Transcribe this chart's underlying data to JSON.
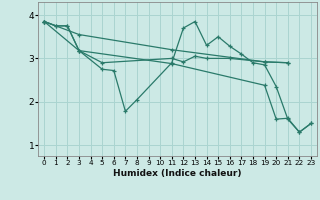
{
  "xlabel": "Humidex (Indice chaleur)",
  "background_color": "#cce9e5",
  "grid_color": "#aad4d0",
  "line_color": "#2a7a6a",
  "xlim": [
    -0.5,
    23.5
  ],
  "ylim": [
    0.75,
    4.3
  ],
  "yticks": [
    1,
    2,
    3,
    4
  ],
  "xticks": [
    0,
    1,
    2,
    3,
    4,
    5,
    6,
    7,
    8,
    9,
    10,
    11,
    12,
    13,
    14,
    15,
    16,
    17,
    18,
    19,
    20,
    21,
    22,
    23
  ],
  "series": [
    {
      "x": [
        0,
        1,
        2,
        3,
        5,
        6,
        7,
        8,
        11,
        12,
        13,
        14,
        15,
        16,
        17,
        18,
        19,
        20,
        21,
        22,
        23
      ],
      "y": [
        3.85,
        3.75,
        3.75,
        3.18,
        2.75,
        2.72,
        1.78,
        2.05,
        2.9,
        3.7,
        3.85,
        3.3,
        3.5,
        3.28,
        3.1,
        2.9,
        2.85,
        2.35,
        1.6,
        1.3,
        1.5
      ]
    },
    {
      "x": [
        0,
        1,
        2,
        3,
        5,
        11,
        12,
        13,
        14,
        16,
        19,
        21
      ],
      "y": [
        3.85,
        3.75,
        3.75,
        3.18,
        2.9,
        3.0,
        2.92,
        3.05,
        3.0,
        3.0,
        2.92,
        2.9
      ]
    },
    {
      "x": [
        0,
        3,
        11,
        19,
        21
      ],
      "y": [
        3.85,
        3.55,
        3.2,
        2.92,
        2.9
      ]
    },
    {
      "x": [
        0,
        3,
        11,
        19,
        20,
        21,
        22,
        23
      ],
      "y": [
        3.85,
        3.18,
        2.88,
        2.38,
        1.6,
        1.62,
        1.3,
        1.5
      ]
    }
  ]
}
